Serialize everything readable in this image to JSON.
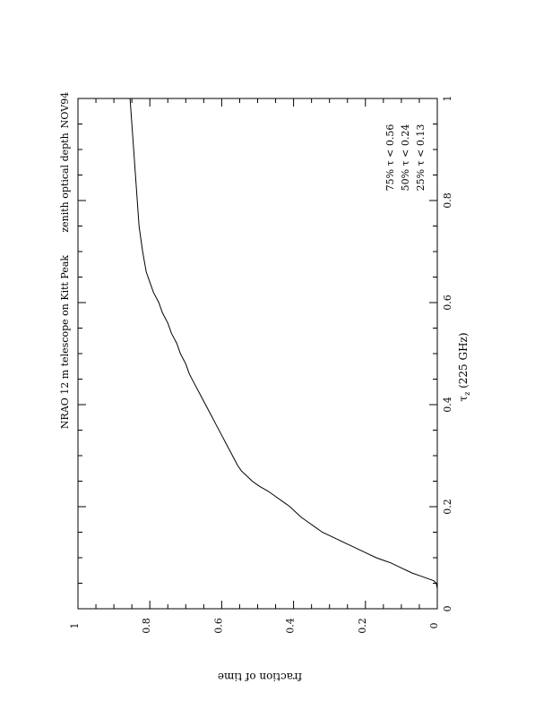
{
  "chart_data": {
    "type": "line",
    "orientation": "rotated-90",
    "title_left": "NRAO 12 m telescope on Kitt Peak",
    "title_right": "zenith optical depth",
    "date_label": "NOV94",
    "xlabel": "τz (225 GHz)",
    "xlabel_main": "τ",
    "xlabel_sub": "z",
    "xlabel_rest": " (225 GHz)",
    "ylabel": "fraction of time",
    "xlim": [
      0,
      1
    ],
    "ylim": [
      0,
      1
    ],
    "x_ticks": [
      "0",
      "0.2",
      "0.4",
      "0.6",
      "0.8",
      "1"
    ],
    "y_ticks": [
      "0",
      "0.2",
      "0.4",
      "0.6",
      "0.8",
      "1"
    ],
    "annotations": [
      "75%  τ  <  0.56",
      "50%  τ  <  0.24",
      "25%  τ  <  0.13"
    ],
    "series": [
      {
        "x": [
          0,
          0.01,
          0.02,
          0.03,
          0.04,
          0.05,
          0.055,
          0.06,
          0.065,
          0.07,
          0.075,
          0.08,
          0.085,
          0.09,
          0.095,
          0.1,
          0.11,
          0.12,
          0.13,
          0.14,
          0.15,
          0.16,
          0.17,
          0.18,
          0.19,
          0.2,
          0.21,
          0.22,
          0.23,
          0.24,
          0.25,
          0.26,
          0.27,
          0.28,
          0.3,
          0.32,
          0.34,
          0.36,
          0.38,
          0.4,
          0.42,
          0.44,
          0.46,
          0.48,
          0.5,
          0.52,
          0.54,
          0.56,
          0.58,
          0.6,
          0.62,
          0.64,
          0.66,
          0.7,
          0.75,
          0.8,
          0.85,
          0.9,
          0.95,
          1.0
        ],
        "y": [
          0,
          0,
          0,
          0,
          0,
          0.003,
          0.01,
          0.03,
          0.05,
          0.07,
          0.085,
          0.1,
          0.115,
          0.13,
          0.15,
          0.17,
          0.2,
          0.23,
          0.26,
          0.29,
          0.32,
          0.34,
          0.36,
          0.38,
          0.395,
          0.41,
          0.43,
          0.45,
          0.47,
          0.495,
          0.515,
          0.53,
          0.545,
          0.555,
          0.57,
          0.585,
          0.6,
          0.615,
          0.63,
          0.645,
          0.66,
          0.675,
          0.69,
          0.7,
          0.715,
          0.725,
          0.74,
          0.75,
          0.765,
          0.775,
          0.79,
          0.8,
          0.81,
          0.82,
          0.83,
          0.835,
          0.84,
          0.845,
          0.85,
          0.855
        ]
      }
    ]
  }
}
